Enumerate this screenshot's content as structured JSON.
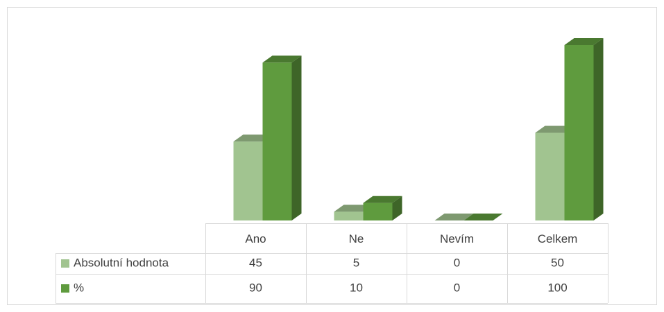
{
  "chart_data": {
    "type": "bar3d",
    "categories": [
      "Ano",
      "Ne",
      "Nevím",
      "Celkem"
    ],
    "series": [
      {
        "name": "Absolutní hodnota",
        "color": "#a1c490",
        "values": [
          45,
          5,
          0,
          50
        ]
      },
      {
        "name": "%",
        "color": "#5f9b3e",
        "values": [
          90,
          10,
          0,
          100
        ]
      }
    ],
    "data_table": true
  }
}
